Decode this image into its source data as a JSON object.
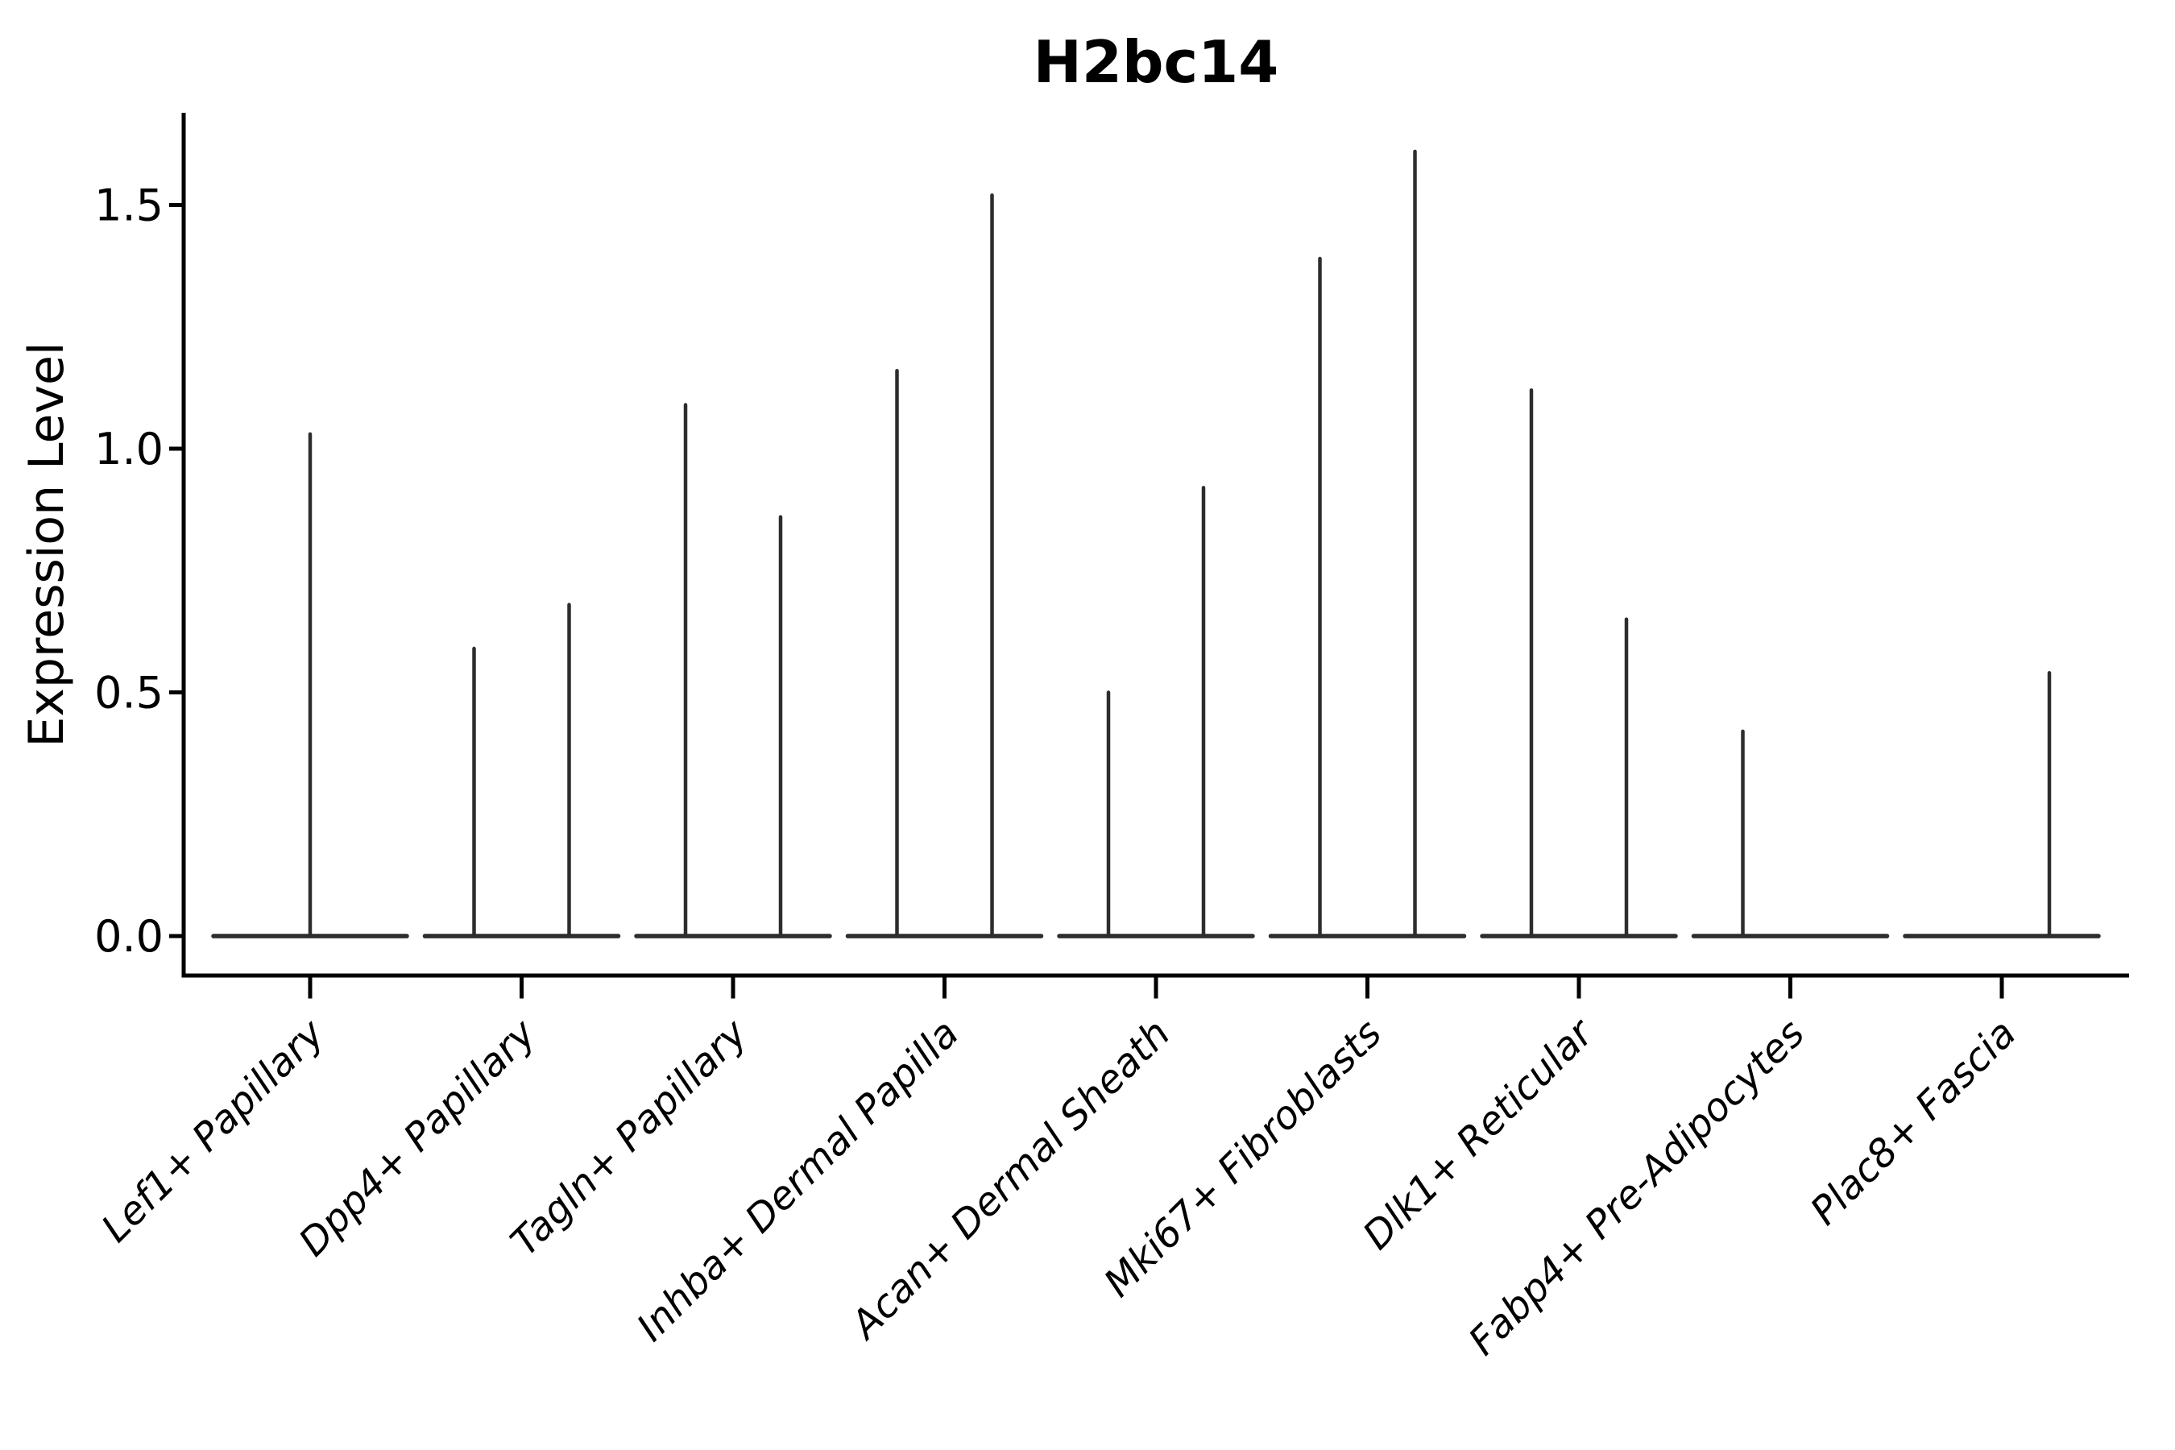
{
  "figure": {
    "background_color": "#ffffff",
    "axis_color": "#000000",
    "violin_color": "#2d2d2d"
  },
  "chart_data": {
    "type": "violin",
    "title": "H2bc14",
    "xlabel": "",
    "ylabel": "Expression Level",
    "legend": "none",
    "grid": false,
    "ylim": [
      -0.08,
      1.69
    ],
    "yticks": [
      {
        "value": 0.0,
        "label": "0.0"
      },
      {
        "value": 0.5,
        "label": "0.5"
      },
      {
        "value": 1.0,
        "label": "1.0"
      },
      {
        "value": 1.5,
        "label": "1.5"
      }
    ],
    "categories": [
      "Lef1+ Papillary",
      "Dpp4+ Papillary",
      "Tagln+ Papillary",
      "Inhba+ Dermal Papilla",
      "Acan+ Dermal Sheath",
      "Mki67+ Fibroblasts",
      "Dlk1+ Reticular",
      "Fabp4+ Pre-Adipocytes",
      "Plac8+ Fascia"
    ],
    "violins": [
      {
        "category": "Lef1+ Papillary",
        "spikes": [
          {
            "position": "center",
            "max_expression": 1.03
          }
        ]
      },
      {
        "category": "Dpp4+ Papillary",
        "spikes": [
          {
            "position": "left",
            "max_expression": 0.59
          },
          {
            "position": "right",
            "max_expression": 0.68
          }
        ]
      },
      {
        "category": "Tagln+ Papillary",
        "spikes": [
          {
            "position": "left",
            "max_expression": 1.09
          },
          {
            "position": "right",
            "max_expression": 0.86
          }
        ]
      },
      {
        "category": "Inhba+ Dermal Papilla",
        "spikes": [
          {
            "position": "left",
            "max_expression": 1.16
          },
          {
            "position": "right",
            "max_expression": 1.52
          }
        ]
      },
      {
        "category": "Acan+ Dermal Sheath",
        "spikes": [
          {
            "position": "left",
            "max_expression": 0.5
          },
          {
            "position": "right",
            "max_expression": 0.92
          }
        ]
      },
      {
        "category": "Mki67+ Fibroblasts",
        "spikes": [
          {
            "position": "left",
            "max_expression": 1.39
          },
          {
            "position": "right",
            "max_expression": 1.61
          }
        ]
      },
      {
        "category": "Dlk1+ Reticular",
        "spikes": [
          {
            "position": "left",
            "max_expression": 1.12
          },
          {
            "position": "right",
            "max_expression": 0.65
          }
        ]
      },
      {
        "category": "Fabp4+ Pre-Adipocytes",
        "spikes": [
          {
            "position": "left",
            "max_expression": 0.42
          }
        ]
      },
      {
        "category": "Plac8+ Fascia",
        "spikes": [
          {
            "position": "right",
            "max_expression": 0.54
          }
        ]
      }
    ],
    "description": "Violin plot of expression; each violin is collapsed flat at 0 with a thin spike up to its maximum expression value."
  }
}
